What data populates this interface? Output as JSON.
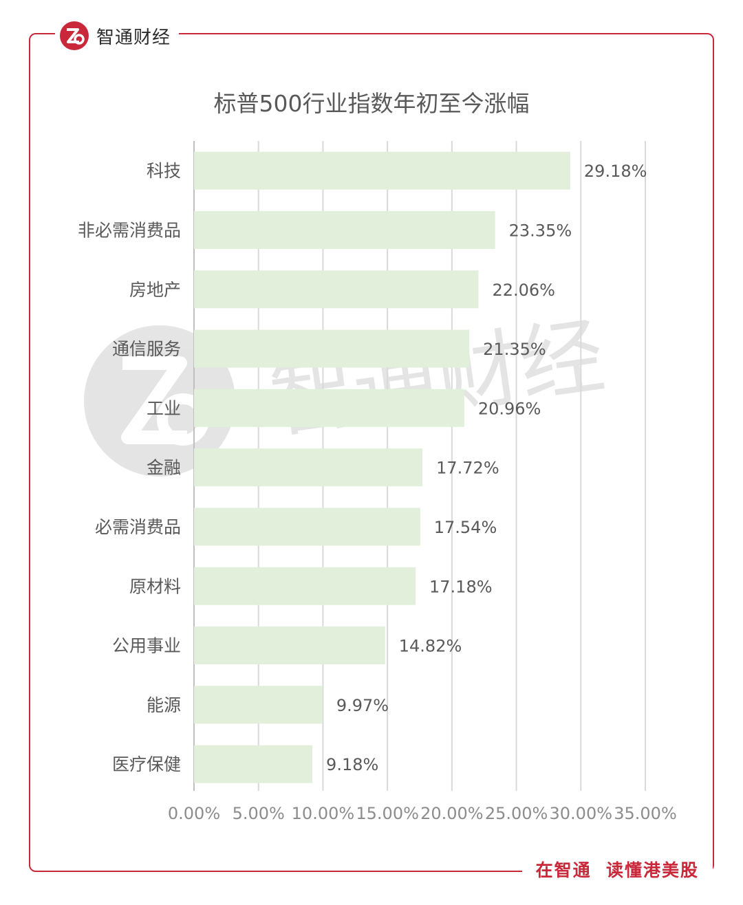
{
  "brand": {
    "name": "智通财经",
    "logo_icon": "zhitong-logo-icon"
  },
  "footer": {
    "slogan": "在智通  读懂港美股"
  },
  "watermark": {
    "text": "智通财经",
    "icon": "zhitong-logo-icon"
  },
  "colors": {
    "bar": "#e2efda",
    "frame": "#c8283a",
    "text": "#595959",
    "grid": "#d9d9d9"
  },
  "chart_data": {
    "type": "bar",
    "orientation": "horizontal",
    "title": "标普500行业指数年初至今涨幅",
    "categories": [
      "科技",
      "非必需消费品",
      "房地产",
      "通信服务",
      "工业",
      "金融",
      "必需消费品",
      "原材料",
      "公用事业",
      "能源",
      "医疗保健"
    ],
    "values": [
      29.18,
      23.35,
      22.06,
      21.35,
      20.96,
      17.72,
      17.54,
      17.18,
      14.82,
      9.97,
      9.18
    ],
    "value_labels": [
      "29.18%",
      "23.35%",
      "22.06%",
      "21.35%",
      "20.96%",
      "17.72%",
      "17.54%",
      "17.18%",
      "14.82%",
      "9.97%",
      "9.18%"
    ],
    "xlim": [
      0,
      35
    ],
    "xticks": [
      0,
      5,
      10,
      15,
      20,
      25,
      30,
      35
    ],
    "xtick_labels": [
      "0.00%",
      "5.00%",
      "10.00%",
      "15.00%",
      "20.00%",
      "25.00%",
      "30.00%",
      "35.00%"
    ],
    "grid": "vertical",
    "legend": "none"
  }
}
